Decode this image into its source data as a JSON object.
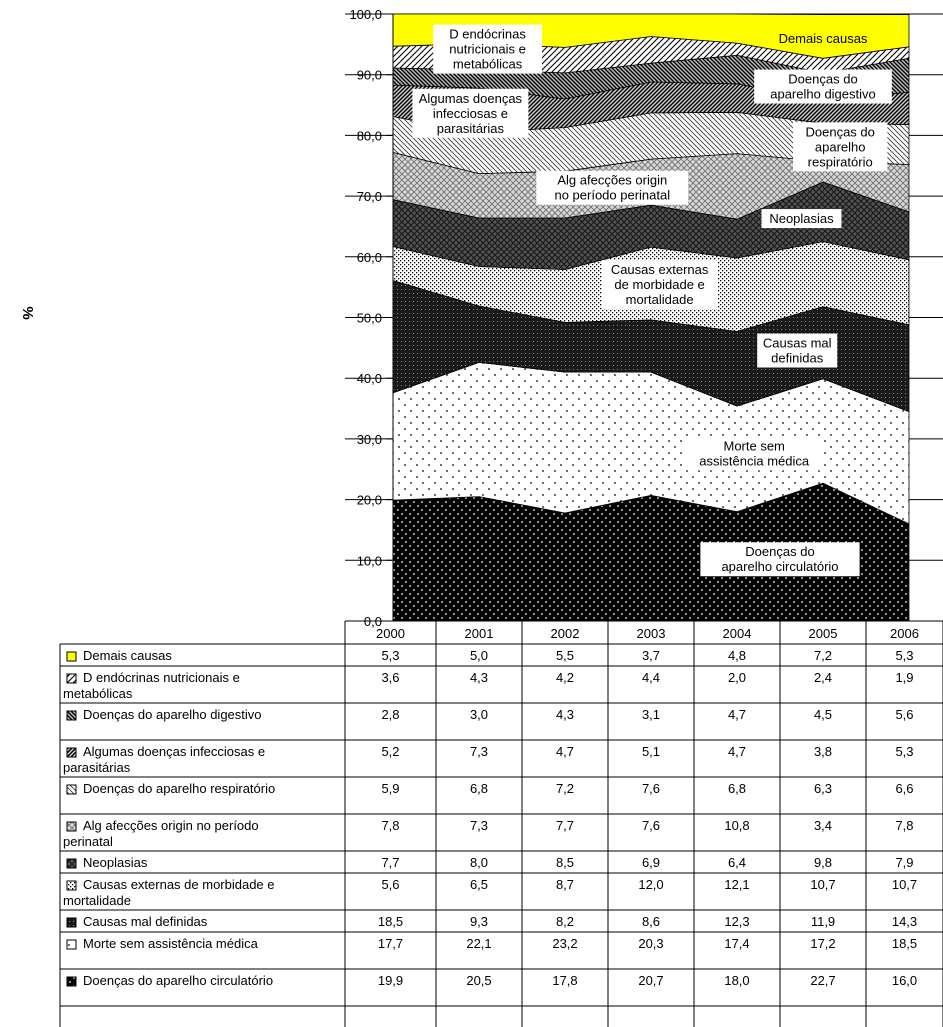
{
  "chart_data": {
    "type": "area",
    "stacked": true,
    "x": [
      "2000",
      "2001",
      "2002",
      "2003",
      "2004",
      "2005",
      "2006"
    ],
    "ylabel": "%",
    "ylim": [
      0,
      100
    ],
    "y_ticks": [
      "0,0",
      "10,0",
      "20,0",
      "30,0",
      "40,0",
      "50,0",
      "60,0",
      "70,0",
      "80,0",
      "90,0",
      "100,0"
    ],
    "grid": true,
    "legend": "table-below",
    "series": [
      {
        "name": "Doenças do aparelho circulatório",
        "legend_label": "Doenças do aparelho circulatório",
        "area_label": "Doenças do aparelho circulatório",
        "pattern": "dots-on-black",
        "values": [
          19.9,
          20.5,
          17.8,
          20.7,
          18.0,
          22.7,
          16.0
        ],
        "display": [
          "19,9",
          "20,5",
          "17,8",
          "20,7",
          "18,0",
          "22,7",
          "16,0"
        ]
      },
      {
        "name": "Morte sem assistência médica",
        "legend_label": "Morte sem assistência médica",
        "area_label": "Morte sem assistência médica",
        "pattern": "sparse-dots",
        "values": [
          17.7,
          22.1,
          23.2,
          20.3,
          17.4,
          17.2,
          18.5
        ],
        "display": [
          "17,7",
          "22,1",
          "23,2",
          "20,3",
          "17,4",
          "17,2",
          "18,5"
        ]
      },
      {
        "name": "Causas mal definidas",
        "legend_label": "Causas mal definidas",
        "area_label": "Causas mal definidas",
        "pattern": "dark-dots",
        "values": [
          18.5,
          9.3,
          8.2,
          8.6,
          12.3,
          11.9,
          14.3
        ],
        "display": [
          "18,5",
          "9,3",
          "8,2",
          "8,6",
          "12,3",
          "11,9",
          "14,3"
        ]
      },
      {
        "name": "Causas externas de morbidade e mortalidade",
        "legend_label": "Causas externas de morbidade e mortalidade",
        "area_label": "Causas externas de morbidade e mortalidade",
        "pattern": "dense-dots",
        "values": [
          5.6,
          6.5,
          8.7,
          12.0,
          12.1,
          10.7,
          10.7
        ],
        "display": [
          "5,6",
          "6,5",
          "8,7",
          "12,0",
          "12,1",
          "10,7",
          "10,7"
        ]
      },
      {
        "name": "Neoplasias",
        "legend_label": "Neoplasias",
        "area_label": "Neoplasias",
        "pattern": "crosshatch-dark",
        "values": [
          7.7,
          8.0,
          8.5,
          6.9,
          6.4,
          9.8,
          7.9
        ],
        "display": [
          "7,7",
          "8,0",
          "8,5",
          "6,9",
          "6,4",
          "9,8",
          "7,9"
        ]
      },
      {
        "name": "Alg afecções origin no período perinatal",
        "legend_label": "Alg afecções origin no período perinatal",
        "area_label": "Alg afecções origin no período perinatal",
        "pattern": "crosshatch-light",
        "values": [
          7.8,
          7.3,
          7.7,
          7.6,
          10.8,
          3.4,
          7.8
        ],
        "display": [
          "7,8",
          "7,3",
          "7,7",
          "7,6",
          "10,8",
          "3,4",
          "7,8"
        ]
      },
      {
        "name": "Doenças do aparelho respiratório",
        "legend_label": "Doenças do aparelho respiratório",
        "area_label": "Doenças do aparelho respiratório",
        "pattern": "diag-fine",
        "values": [
          5.9,
          6.8,
          7.2,
          7.6,
          6.8,
          6.3,
          6.6
        ],
        "display": [
          "5,9",
          "6,8",
          "7,2",
          "7,6",
          "6,8",
          "6,3",
          "6,6"
        ]
      },
      {
        "name": "Algumas doenças infecciosas e parasitárias",
        "legend_label": "Algumas doenças infecciosas e parasitárias",
        "area_label": "Algumas doenças infecciosas e parasitárias",
        "pattern": "diag-up-dense",
        "values": [
          5.2,
          7.3,
          4.7,
          5.1,
          4.7,
          3.8,
          5.3
        ],
        "display": [
          "5,2",
          "7,3",
          "4,7",
          "5,1",
          "4,7",
          "3,8",
          "5,3"
        ]
      },
      {
        "name": "Doenças do aparelho digestivo",
        "legend_label": "Doenças do aparelho digestivo",
        "area_label": "Doenças do aparelho digestivo",
        "pattern": "diag-down-dense",
        "values": [
          2.8,
          3.0,
          4.3,
          3.1,
          4.7,
          4.5,
          5.6
        ],
        "display": [
          "2,8",
          "3,0",
          "4,3",
          "3,1",
          "4,7",
          "4,5",
          "5,6"
        ]
      },
      {
        "name": "D endócrinas nutricionais e metabólicas",
        "legend_label": "D endócrinas nutricionais e metabólicas",
        "area_label": "D endócrinas nutricionais e metabólicas",
        "pattern": "diag-up",
        "values": [
          3.6,
          4.3,
          4.2,
          4.4,
          2.0,
          2.4,
          1.9
        ],
        "display": [
          "3,6",
          "4,3",
          "4,2",
          "4,4",
          "2,0",
          "2,4",
          "1,9"
        ]
      },
      {
        "name": "Demais causas",
        "legend_label": "Demais causas",
        "area_label": "Demais causas",
        "pattern": "solid-yellow",
        "color": "#FFFF00",
        "values": [
          5.3,
          5.0,
          5.5,
          3.7,
          4.8,
          7.2,
          5.3
        ],
        "display": [
          "5,3",
          "5,0",
          "5,5",
          "3,7",
          "4,8",
          "7,2",
          "5,3"
        ]
      }
    ]
  }
}
